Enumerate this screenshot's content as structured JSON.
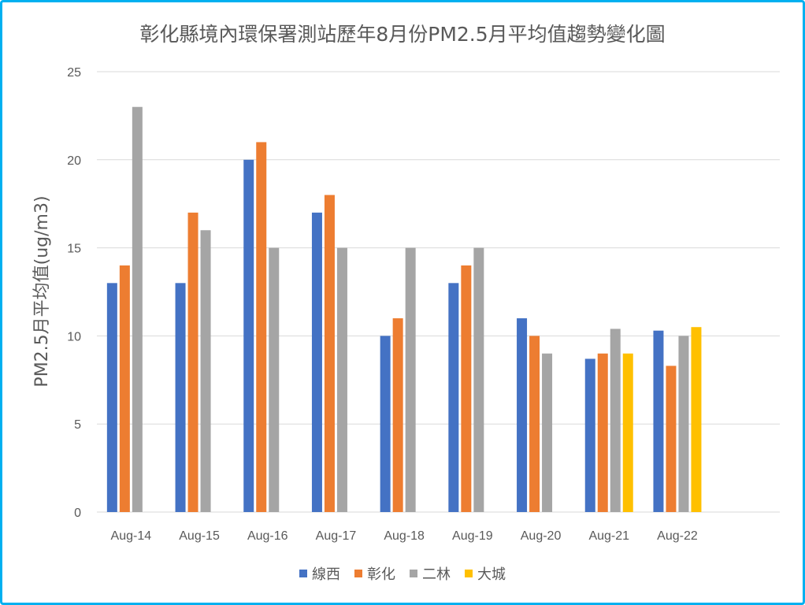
{
  "chart_data": {
    "type": "bar",
    "title": "彰化縣境內環保署測站歷年8月份PM2.5月平均值趨勢變化圖",
    "xlabel": "",
    "ylabel": "PM2.5月平均值(ug/m3)",
    "ylim": [
      0,
      25
    ],
    "yticks": [
      0,
      5,
      10,
      15,
      20,
      25
    ],
    "grid": true,
    "legend_position": "bottom",
    "categories": [
      "Aug-14",
      "Aug-15",
      "Aug-16",
      "Aug-17",
      "Aug-18",
      "Aug-19",
      "Aug-20",
      "Aug-21",
      "Aug-22"
    ],
    "series": [
      {
        "name": "線西",
        "color": "#4472c4",
        "values": [
          13,
          13,
          20,
          17,
          10,
          13,
          11,
          8.7,
          10.3
        ]
      },
      {
        "name": "彰化",
        "color": "#ed7d31",
        "values": [
          14,
          17,
          21,
          18,
          11,
          14,
          10,
          9,
          8.3
        ]
      },
      {
        "name": "二林",
        "color": "#a5a5a5",
        "values": [
          23,
          16,
          15,
          15,
          15,
          15,
          9,
          10.4,
          10
        ]
      },
      {
        "name": "大城",
        "color": "#ffc000",
        "values": [
          null,
          null,
          null,
          null,
          null,
          null,
          null,
          9,
          10.5
        ]
      }
    ]
  }
}
